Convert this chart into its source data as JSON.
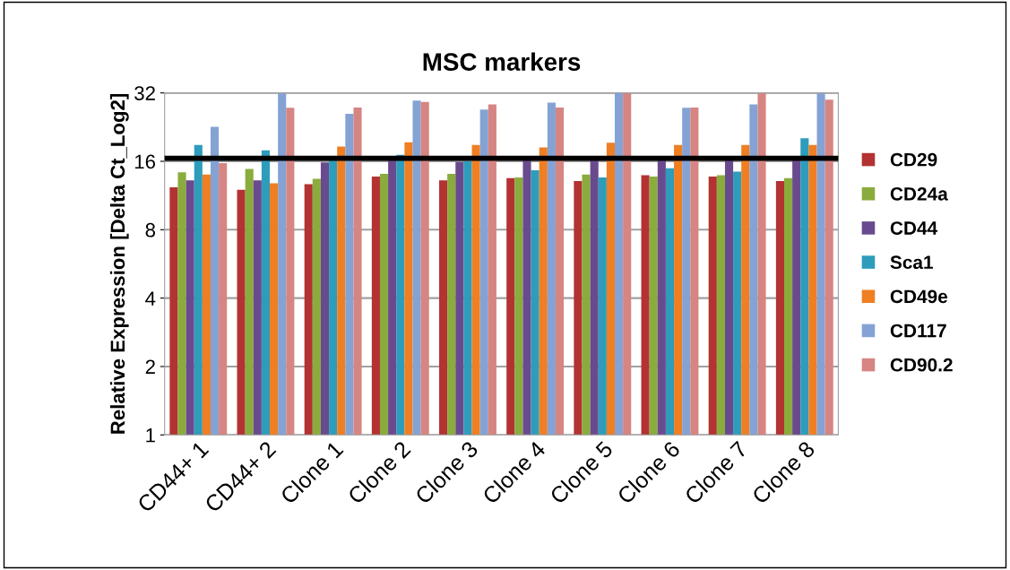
{
  "chart_data": {
    "type": "bar",
    "title": "MSC markers",
    "ylabel": "Relative Expression [Delta Ct_Log2]",
    "categories": [
      "CD44+ 1",
      "CD44+ 2",
      "Clone 1",
      "Clone 2",
      "Clone 3",
      "Clone 4",
      "Clone 5",
      "Clone 6",
      "Clone 7",
      "Clone 8"
    ],
    "series": [
      {
        "name": "CD29",
        "color": "#b33232",
        "values": [
          12.3,
          12.0,
          12.7,
          13.7,
          13.2,
          13.5,
          13.1,
          13.9,
          13.7,
          13.1
        ]
      },
      {
        "name": "CD24a",
        "color": "#8aac3c",
        "values": [
          14.3,
          14.8,
          13.4,
          14.1,
          14.1,
          13.6,
          14.0,
          13.7,
          13.9,
          13.5
        ]
      },
      {
        "name": "CD44",
        "color": "#6a4a8e",
        "values": [
          13.2,
          13.2,
          15.8,
          16.5,
          15.9,
          16.2,
          16.2,
          16.2,
          16.2,
          16.2
        ]
      },
      {
        "name": "Sca1",
        "color": "#2e9cbb",
        "values": [
          18.9,
          17.9,
          16.2,
          17.1,
          16.0,
          14.6,
          13.6,
          14.9,
          14.4,
          20.2
        ]
      },
      {
        "name": "CD49e",
        "color": "#ef7f22",
        "values": [
          14.0,
          12.8,
          18.6,
          19.4,
          18.9,
          18.4,
          19.3,
          18.9,
          18.9,
          18.9
        ]
      },
      {
        "name": "CD117",
        "color": "#84a3d4",
        "values": [
          22.7,
          32,
          25.9,
          29.6,
          27.0,
          29.0,
          32,
          27.5,
          28.5,
          32
        ]
      },
      {
        "name": "CD90.2",
        "color": "#d68582",
        "values": [
          15.7,
          27.5,
          27.6,
          29.2,
          28.5,
          27.6,
          32,
          27.6,
          32,
          29.9
        ]
      }
    ],
    "log": "y",
    "ylim": [
      1,
      32
    ],
    "yticks": [
      1,
      2,
      4,
      8,
      16,
      32
    ],
    "grid": "y",
    "legend": "right",
    "ref_lines": [
      {
        "axis": "y",
        "value": 16.5,
        "color": "#000000",
        "line_style": "solid"
      }
    ]
  }
}
